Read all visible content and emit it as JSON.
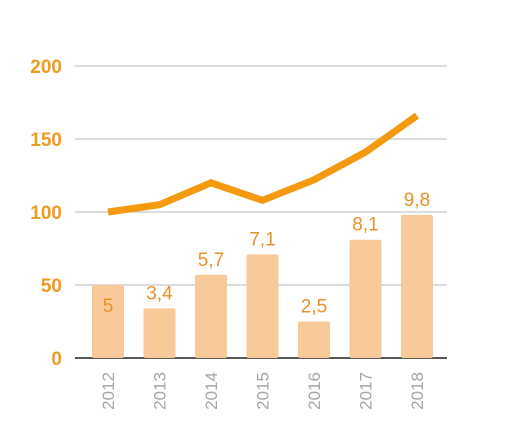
{
  "chart_data": {
    "type": "bar",
    "categories": [
      "2012",
      "2013",
      "2014",
      "2015",
      "2016",
      "2017",
      "2018"
    ],
    "series": [
      {
        "kind": "bar",
        "values": [
          50,
          34,
          57,
          71,
          25,
          81,
          98
        ],
        "data_labels": [
          "5",
          "3,4",
          "5,7",
          "7,1",
          "2,5",
          "8,1",
          "9,8"
        ]
      },
      {
        "kind": "line",
        "values": [
          100,
          105,
          120,
          108,
          122,
          141,
          166
        ]
      }
    ],
    "y_ticks": [
      "0",
      "50",
      "100",
      "150",
      "200"
    ],
    "ylim": [
      0,
      200
    ],
    "grid": true,
    "colors": {
      "bar": "#f8c999",
      "line": "#f59a0f",
      "ytick": "#f29a1e",
      "xtick": "#a6a6a6",
      "data_label": "#e8912a",
      "grid": "#c8c8c8",
      "axis": "#222222"
    }
  }
}
